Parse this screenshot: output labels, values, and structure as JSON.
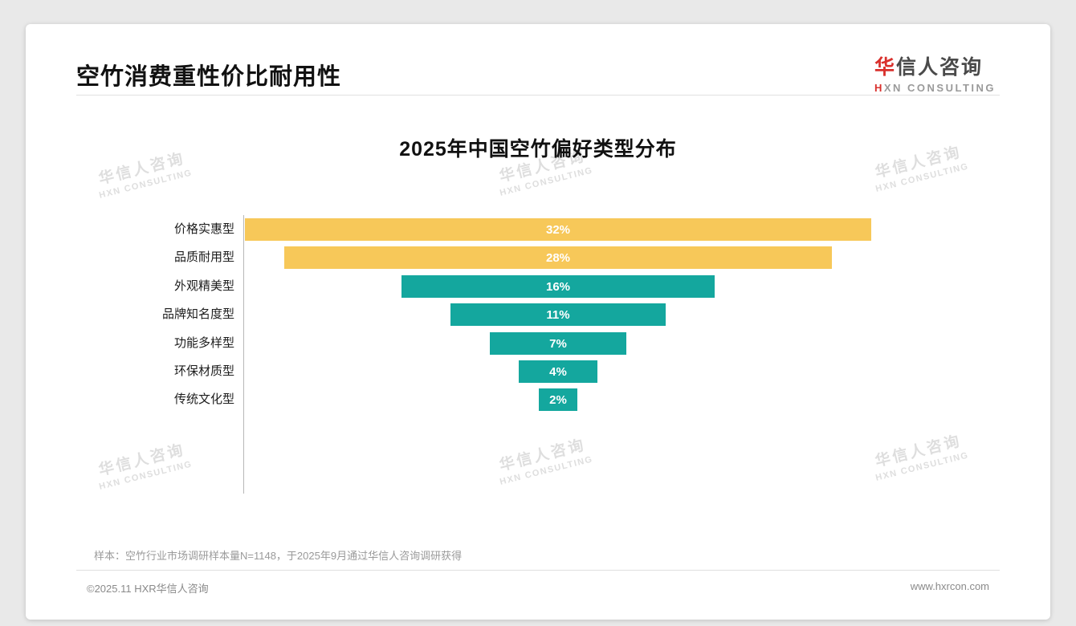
{
  "page": {
    "title": "空竹消费重性价比耐用性",
    "sample_note": "样本：空竹行业市场调研样本量N=1148，于2025年9月通过华信人咨询调研获得",
    "footer_left": "©2025.11 HXR华信人咨询",
    "footer_right": "www.hxrcon.com"
  },
  "logo": {
    "cn_first": "华",
    "cn_rest": "信人咨询",
    "en_first": "H",
    "en_rest": "XN CONSULTING"
  },
  "watermark": {
    "cn": "华信人咨询",
    "en": "HXN CONSULTING"
  },
  "colors": {
    "accent_yellow": "#F7C859",
    "accent_teal": "#14A79E",
    "logo_red": "#D9302C"
  },
  "chart_data": {
    "type": "bar",
    "variant": "horizontal-centered-funnel",
    "title": "2025年中国空竹偏好类型分布",
    "categories": [
      "价格实惠型",
      "品质耐用型",
      "外观精美型",
      "品牌知名度型",
      "功能多样型",
      "环保材质型",
      "传统文化型"
    ],
    "values": [
      32,
      28,
      16,
      11,
      7,
      4,
      2
    ],
    "value_labels": [
      "32%",
      "28%",
      "16%",
      "11%",
      "7%",
      "4%",
      "2%"
    ],
    "bar_colors": [
      "#F7C859",
      "#F7C859",
      "#14A79E",
      "#14A79E",
      "#14A79E",
      "#14A79E",
      "#14A79E"
    ],
    "unit": "%",
    "xlim": [
      0,
      32
    ],
    "grid": false,
    "legend": false
  }
}
